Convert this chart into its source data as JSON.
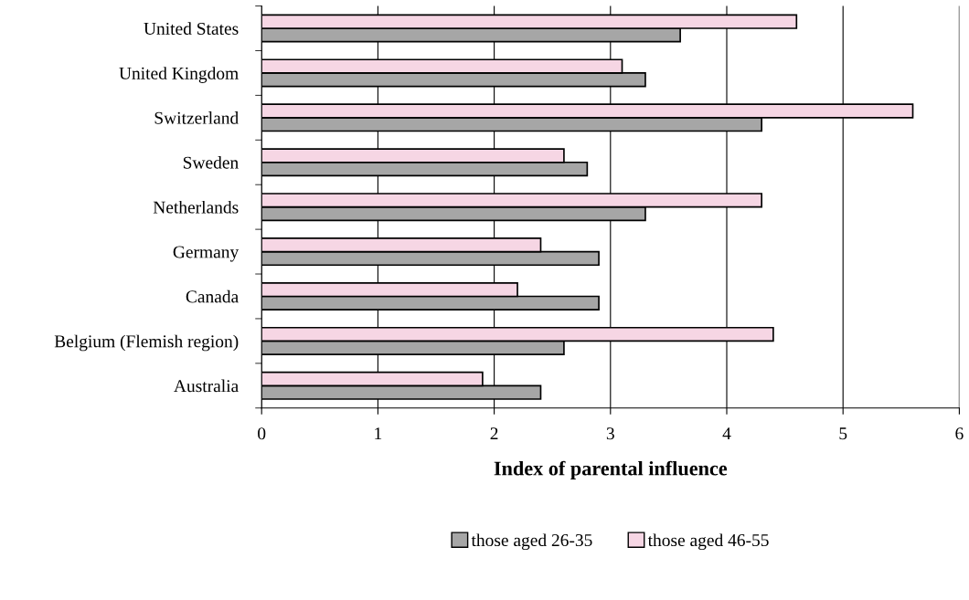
{
  "chart_data": {
    "type": "bar",
    "orientation": "horizontal",
    "xlabel": "Index of parental influence",
    "categories": [
      "United States",
      "United Kingdom",
      "Switzerland",
      "Sweden",
      "Netherlands",
      "Germany",
      "Canada",
      "Belgium (Flemish region)",
      "Australia"
    ],
    "series": [
      {
        "name": "those aged 26-35",
        "color": "#a6a6a6",
        "values": [
          3.6,
          3.3,
          4.3,
          2.8,
          3.3,
          2.9,
          2.9,
          2.6,
          2.4
        ]
      },
      {
        "name": "those aged 46-55",
        "color": "#f6d6e4",
        "values": [
          4.6,
          3.1,
          5.6,
          2.6,
          4.3,
          2.4,
          2.2,
          4.4,
          1.9
        ]
      }
    ],
    "xlim": [
      0,
      6
    ],
    "xticks": [
      0,
      1,
      2,
      3,
      4,
      5,
      6
    ],
    "grid": "x",
    "legend": "bottom"
  }
}
